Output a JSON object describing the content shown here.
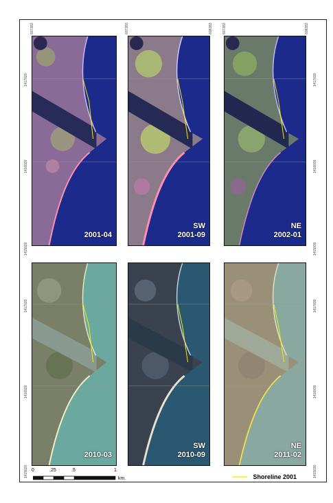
{
  "panels_top": [
    {
      "date": "2001-04",
      "dir": ""
    },
    {
      "date": "2001-09",
      "dir": "SW"
    },
    {
      "date": "2002-01",
      "dir": "NE"
    }
  ],
  "panels_bottom": [
    {
      "date": "2010-03",
      "dir": ""
    },
    {
      "date": "2010-09",
      "dir": "SW"
    },
    {
      "date": "2011-02",
      "dir": "NE"
    }
  ],
  "coords": {
    "col1_top": "607283",
    "col2_top_left": "607283",
    "col2_top_right": "608283",
    "col3_top_left": "607283",
    "col3_top_right": "608283",
    "y_top": "1417020",
    "y_mid": "1416020",
    "y_bot": "1415020",
    "y_top_r": "1417030",
    "y_mid_r": "1416030",
    "y_bot_r": "1415030"
  },
  "scale": {
    "ticks": [
      "0",
      ".25",
      ".5",
      "1"
    ],
    "unit": "km."
  },
  "legend": {
    "label": "Shoreline 2001",
    "color": "#f5f000"
  }
}
